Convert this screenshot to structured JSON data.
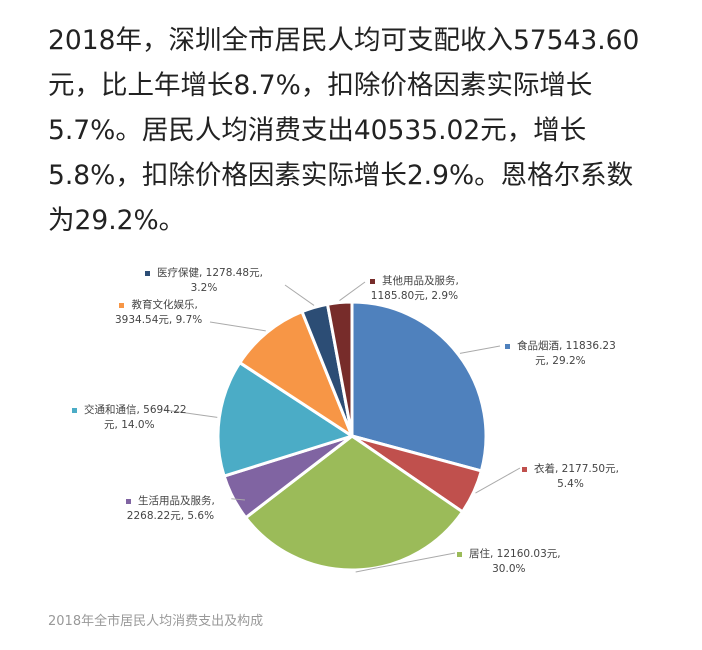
{
  "paragraph_lines": [
    "2018年，深圳全市居民人均可支配收入57543.60",
    "元，比上年增长8.7%，扣除价格因素实际增长",
    "5.7%。居民人均消费支出40535.02元，增长",
    "5.8%，扣除价格因素实际增长2.9%。恩格尔系数",
    "为29.2%。"
  ],
  "caption": "2018年全市居民人均消费支出及构成",
  "chart_data": {
    "type": "pie",
    "title": "",
    "unit": "元",
    "start": "top, clockwise",
    "slices": [
      {
        "name": "食品烟酒",
        "value": 11836.23,
        "percent": 29.2,
        "color": "#4F81BD",
        "label1": "食品烟酒, 11836.23",
        "label2": "元, 29.2%"
      },
      {
        "name": "衣着",
        "value": 2177.5,
        "percent": 5.4,
        "color": "#C0504D",
        "label1": "衣着, 2177.50元,",
        "label2": "5.4%"
      },
      {
        "name": "居住",
        "value": 12160.03,
        "percent": 30.0,
        "color": "#9BBB59",
        "label1": "居住, 12160.03元,",
        "label2": "30.0%"
      },
      {
        "name": "生活用品及服务",
        "value": 2268.22,
        "percent": 5.6,
        "color": "#8064A2",
        "label1": "生活用品及服务,",
        "label2": "2268.22元, 5.6%"
      },
      {
        "name": "交通和通信",
        "value": 5694.22,
        "percent": 14.0,
        "color": "#4BACC6",
        "label1": "交通和通信, 5694.22",
        "label2": "元, 14.0%"
      },
      {
        "name": "教育文化娱乐",
        "value": 3934.54,
        "percent": 9.7,
        "color": "#F79646",
        "label1": "教育文化娱乐,",
        "label2": "3934.54元, 9.7%"
      },
      {
        "name": "医疗保健",
        "value": 1278.48,
        "percent": 3.2,
        "color": "#2C4D75",
        "label1": "医疗保健, 1278.48元,",
        "label2": "3.2%"
      },
      {
        "name": "其他用品及服务",
        "value": 1185.8,
        "percent": 2.9,
        "color": "#772C2A",
        "label1": "其他用品及服务,",
        "label2": "1185.80元, 2.9%"
      }
    ]
  }
}
